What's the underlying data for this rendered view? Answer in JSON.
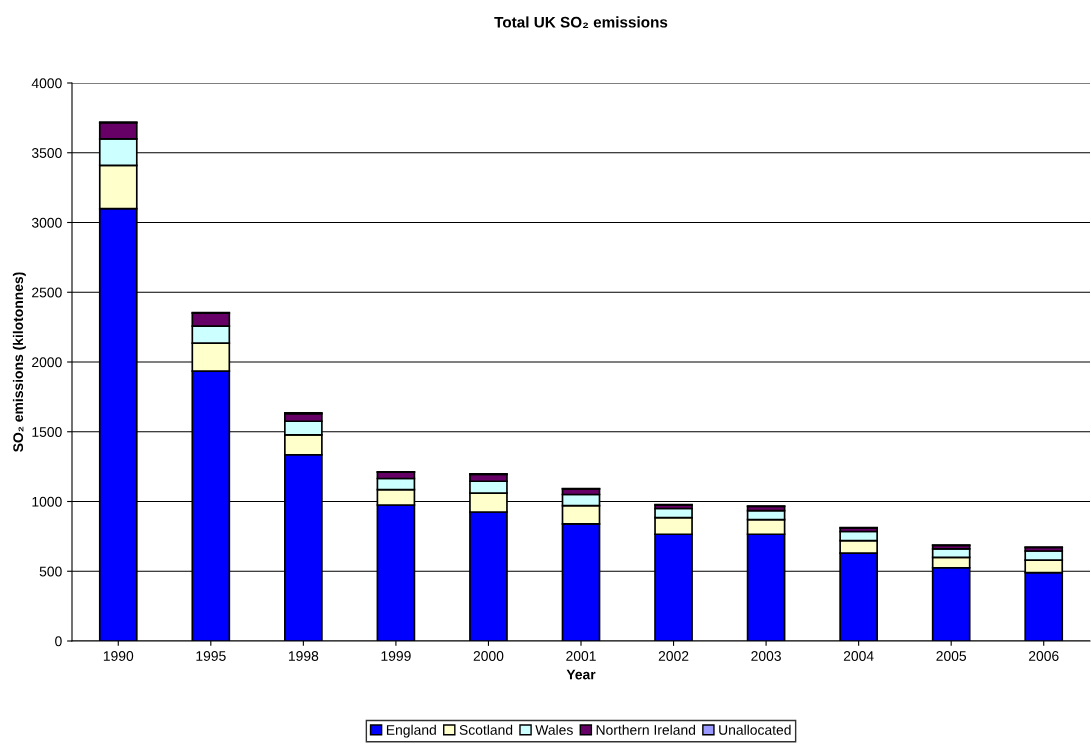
{
  "chart_data": {
    "type": "bar",
    "title": "Total UK SO₂ emissions",
    "xlabel": "Year",
    "ylabel": "SO₂ emissions (kilotonnes)",
    "categories": [
      "1990",
      "1995",
      "1998",
      "1999",
      "2000",
      "2001",
      "2002",
      "2003",
      "2004",
      "2005",
      "2006"
    ],
    "stacked": true,
    "series": [
      {
        "name": "England",
        "color": "#0000ff",
        "values": [
          3100,
          1935,
          1335,
          975,
          925,
          840,
          765,
          765,
          630,
          525,
          490
        ]
      },
      {
        "name": "Scotland",
        "color": "#ffffcc",
        "values": [
          310,
          200,
          143,
          110,
          135,
          130,
          120,
          105,
          90,
          75,
          90
        ]
      },
      {
        "name": "Wales",
        "color": "#ccffff",
        "values": [
          190,
          122,
          97,
          80,
          85,
          80,
          65,
          65,
          65,
          60,
          65
        ]
      },
      {
        "name": "Northern Ireland",
        "color": "#660066",
        "values": [
          115,
          93,
          55,
          45,
          50,
          40,
          25,
          30,
          25,
          25,
          25
        ]
      },
      {
        "name": "Unallocated",
        "color": "#9999ff",
        "values": [
          5,
          5,
          5,
          3,
          3,
          3,
          3,
          3,
          3,
          3,
          3
        ]
      }
    ],
    "ylim": [
      0,
      4000
    ],
    "yticks": [
      0,
      500,
      1000,
      1500,
      2000,
      2500,
      3000,
      3500,
      4000
    ],
    "grid": "y",
    "legend": "bottom"
  }
}
